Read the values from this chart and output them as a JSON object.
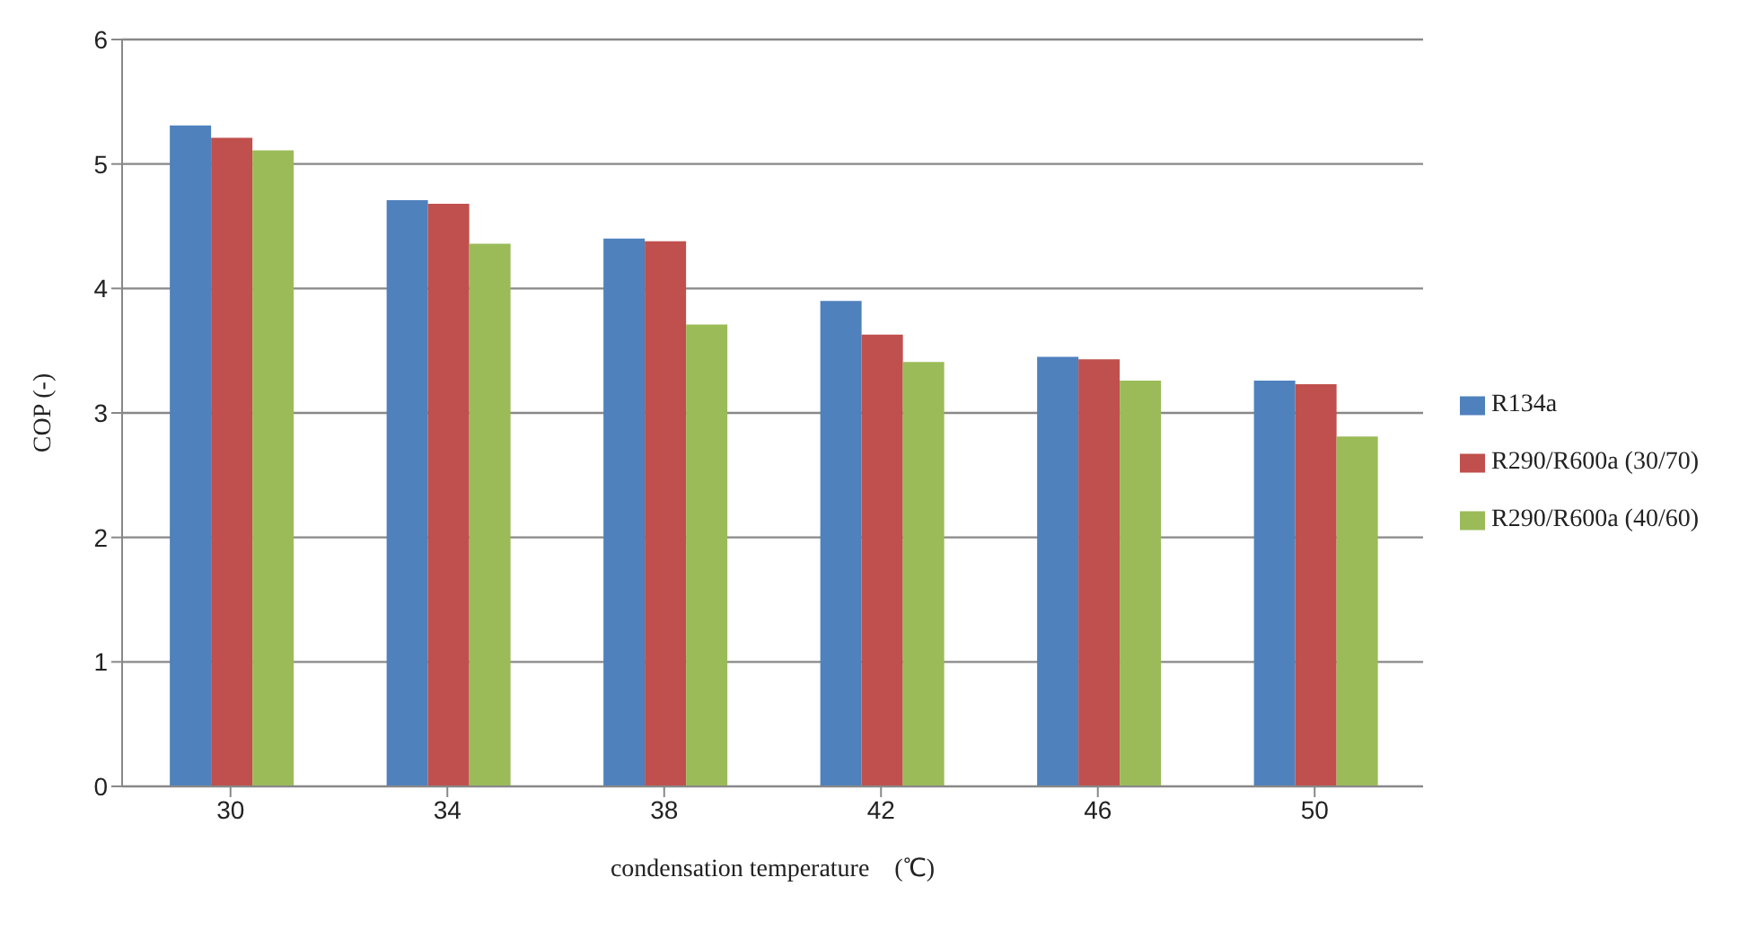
{
  "chart_data": {
    "type": "bar",
    "xlabel": "condensation temperature　(℃)",
    "ylabel": "COP (-)",
    "categories": [
      "30",
      "34",
      "38",
      "42",
      "46",
      "50"
    ],
    "series": [
      {
        "name": "R134a",
        "color": "#4f81bd",
        "values": [
          5.31,
          4.71,
          4.4,
          3.9,
          3.45,
          3.26
        ]
      },
      {
        "name": "R290/R600a (30/70)",
        "color": "#c0504d",
        "values": [
          5.21,
          4.68,
          4.38,
          3.63,
          3.43,
          3.23
        ]
      },
      {
        "name": "R290/R600a (40/60)",
        "color": "#9bbb59",
        "values": [
          5.11,
          4.36,
          3.71,
          3.41,
          3.26,
          2.81
        ]
      }
    ],
    "ylim": [
      0,
      6
    ],
    "yticks": [
      0,
      1,
      2,
      3,
      4,
      5,
      6
    ],
    "grid": "y",
    "legend": "right"
  }
}
